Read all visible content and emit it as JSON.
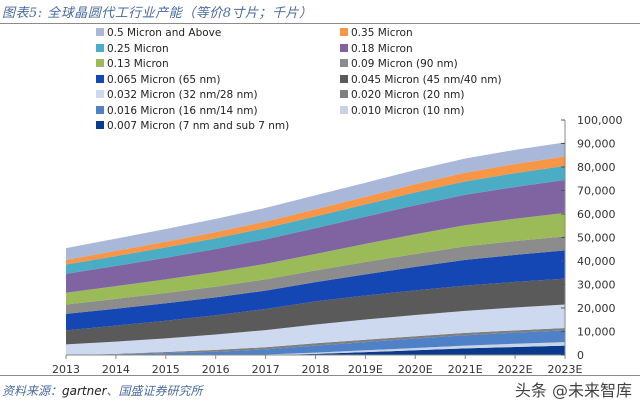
{
  "header": {
    "title": "图表5: 全球晶圆代工行业产能（等价8寸片；千片）"
  },
  "footer": {
    "source_prefix": "资料来源：",
    "source_en": "gartner",
    "source_suffix": "、国盛证券研究所",
    "watermark": "头条 @未来智库"
  },
  "chart_data": {
    "type": "area",
    "stacked": true,
    "title": "全球晶圆代工行业产能（等价8寸片；千片）",
    "xlabel": "",
    "ylabel": "",
    "x": [
      "2013",
      "2014",
      "2015",
      "2016",
      "2017",
      "2018",
      "2019E",
      "2020E",
      "2021E",
      "2022E",
      "2023E"
    ],
    "ylim": [
      0,
      100000
    ],
    "yticks": [
      0,
      10000,
      20000,
      30000,
      40000,
      50000,
      60000,
      70000,
      80000,
      90000,
      100000
    ],
    "ytick_labels": [
      "0",
      "10,000",
      "20,000",
      "30,000",
      "40,000",
      "50,000",
      "60,000",
      "70,000",
      "80,000",
      "90,000",
      "100,000"
    ],
    "y_axis_position": "right",
    "grid": false,
    "legend_position": "top-left",
    "series": [
      {
        "name": "0.007 Micron (7 nm and sub 7 nm)",
        "color": "#0a3a8c",
        "values": [
          0,
          0,
          0,
          0,
          0,
          500,
          1200,
          2000,
          2800,
          3400,
          4000
        ]
      },
      {
        "name": "0.010 Micron (10 nm)",
        "color": "#c9d3e6",
        "values": [
          0,
          0,
          0,
          0,
          200,
          500,
          800,
          1000,
          1200,
          1400,
          1500
        ]
      },
      {
        "name": "0.016 Micron (16 nm/14 nm)",
        "color": "#4f81c8",
        "values": [
          0,
          300,
          800,
          1400,
          2200,
          3000,
          3500,
          4000,
          4400,
          4700,
          5000
        ]
      },
      {
        "name": "0.020 Micron (20 nm)",
        "color": "#7f7f7f",
        "values": [
          0,
          200,
          500,
          800,
          900,
          1000,
          1000,
          1000,
          1000,
          1000,
          1000
        ]
      },
      {
        "name": "0.032 Micron (32 nm/28 nm)",
        "color": "#cdd9ef",
        "values": [
          4500,
          5200,
          5800,
          6500,
          7300,
          8000,
          8600,
          9000,
          9400,
          9700,
          10000
        ]
      },
      {
        "name": "0.045 Micron (45 nm/40 nm)",
        "color": "#5a5a5a",
        "values": [
          6000,
          6800,
          7500,
          8200,
          9000,
          9800,
          10200,
          10500,
          10700,
          10900,
          11000
        ]
      },
      {
        "name": "0.065 Micron (65 nm)",
        "color": "#1446b4",
        "values": [
          7000,
          7200,
          7400,
          7600,
          7800,
          8200,
          9000,
          10000,
          11000,
          11500,
          12000
        ]
      },
      {
        "name": "0.09 Micron (90 nm)",
        "color": "#8c8c8c",
        "values": [
          4000,
          4200,
          4400,
          4600,
          4800,
          5000,
          5300,
          5500,
          5700,
          5900,
          6000
        ]
      },
      {
        "name": "0.13 Micron",
        "color": "#9bbb59",
        "values": [
          5000,
          5400,
          5800,
          6200,
          6600,
          7000,
          7700,
          8400,
          9000,
          9500,
          10000
        ]
      },
      {
        "name": "0.18 Micron",
        "color": "#8064a2",
        "values": [
          8000,
          8600,
          9200,
          9800,
          10400,
          11000,
          11600,
          12300,
          13000,
          13500,
          14000
        ]
      },
      {
        "name": "0.25 Micron",
        "color": "#4bacc6",
        "values": [
          4000,
          4200,
          4400,
          4600,
          4800,
          5000,
          5200,
          5500,
          5700,
          5900,
          6000
        ]
      },
      {
        "name": "0.35 Micron",
        "color": "#f79646",
        "values": [
          2000,
          2200,
          2400,
          2600,
          2800,
          3000,
          3200,
          3500,
          3700,
          3900,
          4000
        ]
      },
      {
        "name": "0.5 Micron and Above",
        "color": "#a9b8d8",
        "values": [
          5000,
          5200,
          5400,
          5600,
          5800,
          6000,
          6000,
          6000,
          6000,
          6000,
          6000
        ]
      }
    ],
    "legend_order": [
      "0.5 Micron and Above",
      "0.35 Micron",
      "0.25 Micron",
      "0.18 Micron",
      "0.13 Micron",
      "0.09 Micron (90 nm)",
      "0.065 Micron (65 nm)",
      "0.045 Micron (45 nm/40 nm)",
      "0.032 Micron (32 nm/28 nm)",
      "0.020 Micron (20 nm)",
      "0.016 Micron (16 nm/14 nm)",
      "0.010 Micron (10 nm)",
      "0.007 Micron (7 nm and sub 7 nm)"
    ]
  }
}
